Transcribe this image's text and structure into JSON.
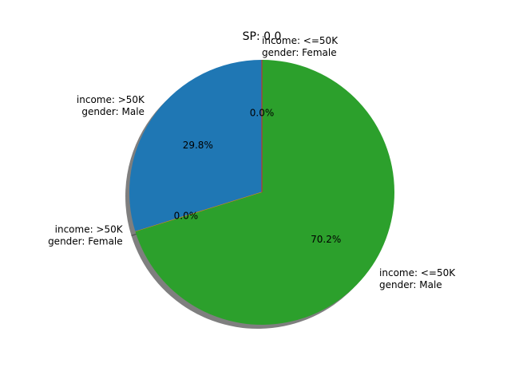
{
  "chart_data": {
    "type": "pie",
    "title": "SP: 0.0",
    "shadow": true,
    "start_angle_deg": 90,
    "direction": "counterclockwise",
    "slices": [
      {
        "label_lines": [
          "income: >50K",
          "gender: Male"
        ],
        "value": 29.8,
        "pct_label": "29.8%",
        "color": "#1f77b4"
      },
      {
        "label_lines": [
          "income: >50K",
          "gender: Female"
        ],
        "value": 0.0,
        "pct_label": "0.0%",
        "color": "#ff7f0e"
      },
      {
        "label_lines": [
          "income: <=50K",
          "gender: Male"
        ],
        "value": 70.2,
        "pct_label": "70.2%",
        "color": "#2ca02c"
      },
      {
        "label_lines": [
          "income: <=50K",
          "gender: Female"
        ],
        "value": 0.0,
        "pct_label": "0.0%",
        "color": "#d62728"
      }
    ]
  }
}
